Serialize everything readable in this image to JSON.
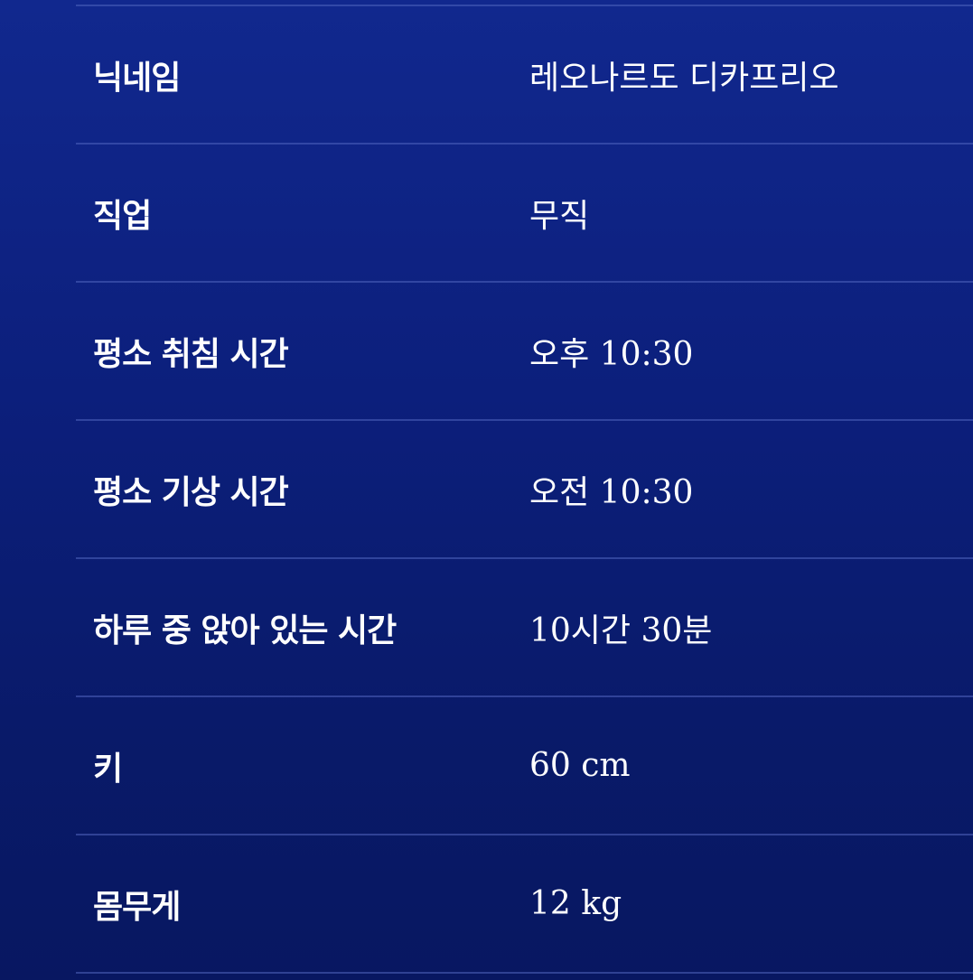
{
  "profile": {
    "rows": [
      {
        "label": "닉네임",
        "value": "레오나르도 디카프리오"
      },
      {
        "label": "직업",
        "value": "무직"
      },
      {
        "label": "평소 취침 시간",
        "value": "오후 10:30"
      },
      {
        "label": "평소 기상 시간",
        "value": "오전 10:30"
      },
      {
        "label": "하루 중 앉아 있는 시간",
        "value": "10시간 30분"
      },
      {
        "label": "키",
        "value": "60 cm"
      },
      {
        "label": "몸무게",
        "value": "12 kg"
      }
    ]
  },
  "colors": {
    "background_top": "#11288e",
    "background_bottom": "#081761",
    "divider": "#5064be",
    "text": "#ffffff"
  }
}
